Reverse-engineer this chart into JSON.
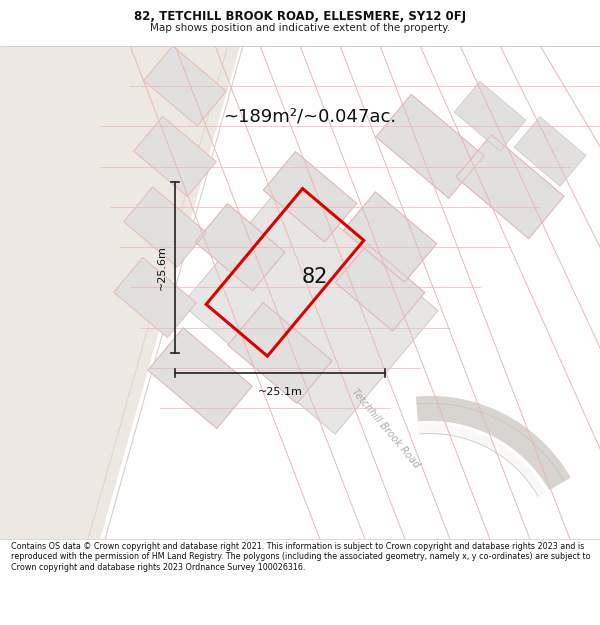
{
  "title_line1": "82, TETCHILL BROOK ROAD, ELLESMERE, SY12 0FJ",
  "title_line2": "Map shows position and indicative extent of the property.",
  "area_text": "~189m²/~0.047ac.",
  "label_82": "82",
  "dim_vertical": "~25.6m",
  "dim_horizontal": "~25.1m",
  "road_label": "Tetchhill Brook Road",
  "footer_text": "Contains OS data © Crown copyright and database right 2021. This information is subject to Crown copyright and database rights 2023 and is reproduced with the permission of HM Land Registry. The polygons (including the associated geometry, namely x, y co-ordinates) are subject to Crown copyright and database rights 2023 Ordnance Survey 100026316.",
  "bg_map": "#faf8f7",
  "bg_title": "#ffffff",
  "bg_beige": "#ede8e2",
  "plot_gray": "#e2e0de",
  "plot_gray2": "#e8e6e4",
  "line_pink": "#e8b8b8",
  "line_gray": "#c8c4c0",
  "road_gray": "#d8d4d0",
  "highlight_color": "#dd0000",
  "dim_line_color": "#222222",
  "text_dim_color": "#111111"
}
